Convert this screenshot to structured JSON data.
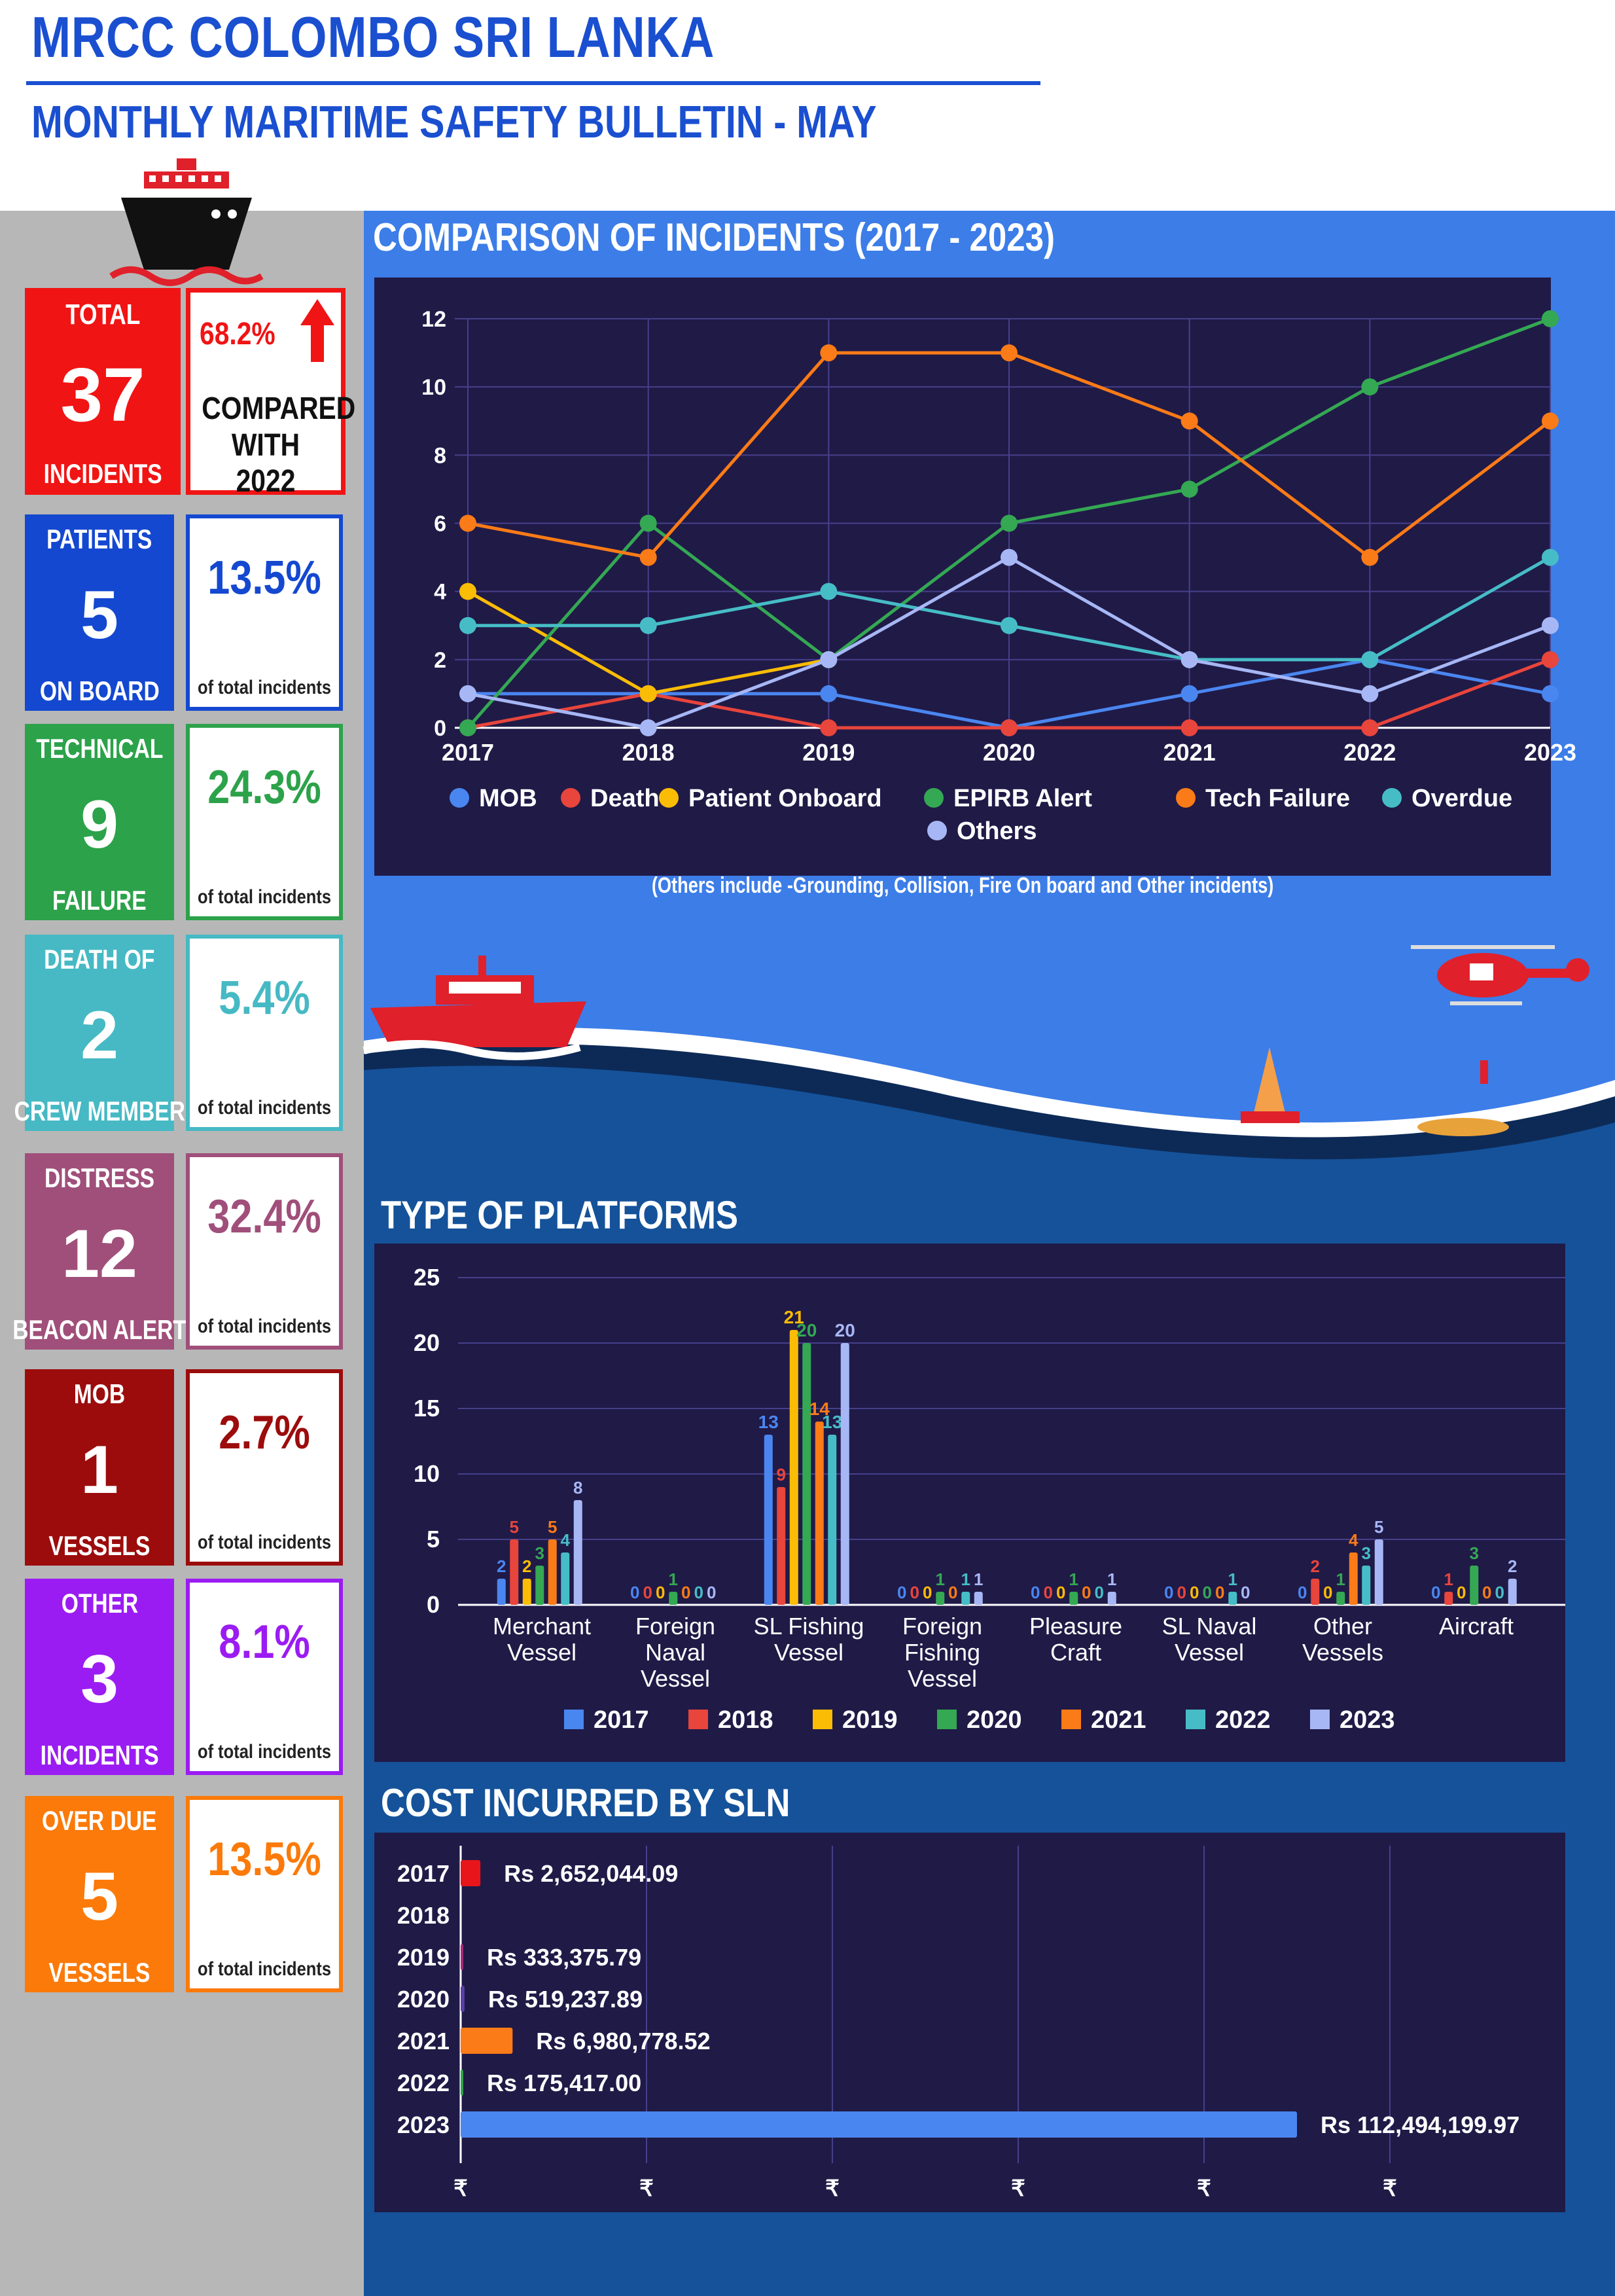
{
  "header": {
    "title": "MRCC COLOMBO SRI LANKA",
    "subtitle": "MONTHLY MARITIME SAFETY BULLETIN -    MAY"
  },
  "colors": {
    "title_blue": "#1a4fd0",
    "panel_blue": "#3c7de8",
    "panel_dark_blue": "#15529a",
    "chart_bg": "#201a47",
    "sidebar_grey": "#b7b7b7"
  },
  "summary": {
    "total": {
      "label_top": "TOTAL",
      "value": "37",
      "label_bottom": "INCIDENTS",
      "change": "68.2%",
      "compare_line1": "COMPARED",
      "compare_line2": "WITH 2022",
      "color": "#f01414"
    },
    "cards": [
      {
        "label_top": "PATIENTS",
        "value": "5",
        "label_bottom": "ON BOARD",
        "percent": "13.5%",
        "note": "of total incidents",
        "color": "#1448d0"
      },
      {
        "label_top": "TECHNICAL",
        "value": "9",
        "label_bottom": "FAILURE",
        "percent": "24.3%",
        "note": "of total incidents",
        "color": "#2ca24a"
      },
      {
        "label_top": "DEATH OF",
        "value": "2",
        "label_bottom": "CREW MEMBER",
        "percent": "5.4%",
        "note": "of total incidents",
        "color": "#46b9c4"
      },
      {
        "label_top": "DISTRESS",
        "value": "12",
        "label_bottom": "BEACON ALERT",
        "percent": "32.4%",
        "note": "of total incidents",
        "color": "#a04f7a"
      },
      {
        "label_top": "MOB",
        "value": "1",
        "label_bottom": "VESSELS",
        "percent": "2.7%",
        "note": "of total incidents",
        "color": "#9c0c0c"
      },
      {
        "label_top": "OTHER",
        "value": "3",
        "label_bottom": "INCIDENTS",
        "percent": "8.1%",
        "note": "of total incidents",
        "color": "#9b1cf2"
      },
      {
        "label_top": "OVER DUE",
        "value": "5",
        "label_bottom": "VESSELS",
        "percent": "13.5%",
        "note": "of total incidents",
        "color": "#fb7a0a"
      }
    ]
  },
  "chart_data": [
    {
      "type": "line",
      "title": "COMPARISON OF INCIDENTS (2017 - 2023)",
      "x": [
        "2017",
        "2018",
        "2019",
        "2020",
        "2021",
        "2022",
        "2023"
      ],
      "ylim": [
        0,
        12
      ],
      "yticks": [
        "0",
        "2",
        "4",
        "6",
        "8",
        "10",
        "12"
      ],
      "grid": true,
      "legend": "bottom",
      "series": [
        {
          "name": "MOB",
          "color": "#4a86f0",
          "values": [
            1,
            1,
            1,
            0,
            1,
            2,
            1
          ]
        },
        {
          "name": "Death",
          "color": "#e8453c",
          "values": [
            0,
            1,
            0,
            0,
            0,
            0,
            2
          ]
        },
        {
          "name": "Patient Onboard",
          "color": "#fbbc05",
          "values": [
            4,
            1,
            2,
            null,
            null,
            null,
            null
          ]
        },
        {
          "name": "EPIRB Alert",
          "color": "#34a853",
          "values": [
            0,
            6,
            2,
            6,
            7,
            10,
            12
          ]
        },
        {
          "name": "Tech Failure",
          "color": "#fa7b17",
          "values": [
            6,
            5,
            11,
            11,
            9,
            5,
            9
          ]
        },
        {
          "name": "Overdue",
          "color": "#46bdc6",
          "values": [
            3,
            3,
            4,
            3,
            2,
            2,
            5
          ]
        },
        {
          "name": "Others",
          "color": "#a7b7f5",
          "values": [
            1,
            0,
            2,
            5,
            2,
            1,
            3
          ]
        }
      ],
      "note": "(Others include -Grounding, Collision, Fire On board and Other incidents)"
    },
    {
      "type": "bar",
      "title": "TYPE OF PLATFORMS",
      "categories": [
        [
          "Merchant",
          "Vessel"
        ],
        [
          "Foreign",
          "Naval",
          "Vessel"
        ],
        [
          "SL Fishing",
          "Vessel"
        ],
        [
          "Foreign",
          "Fishing",
          "Vessel"
        ],
        [
          "Pleasure",
          "Craft"
        ],
        [
          "SL Naval",
          "Vessel"
        ],
        [
          "Other",
          "Vessels"
        ],
        [
          "Aircraft"
        ]
      ],
      "ylim": [
        0,
        25
      ],
      "yticks": [
        "0",
        "5",
        "10",
        "15",
        "20",
        "25"
      ],
      "grid": true,
      "legend": "bottom",
      "series": [
        {
          "name": "2017",
          "color": "#4a86f0",
          "values": [
            2,
            0,
            13,
            0,
            0,
            0,
            0,
            0
          ]
        },
        {
          "name": "2018",
          "color": "#e8453c",
          "values": [
            5,
            0,
            9,
            0,
            0,
            0,
            2,
            1
          ]
        },
        {
          "name": "2019",
          "color": "#fbbc05",
          "values": [
            2,
            0,
            21,
            0,
            0,
            0,
            0,
            0
          ]
        },
        {
          "name": "2020",
          "color": "#34a853",
          "values": [
            3,
            1,
            20,
            1,
            1,
            0,
            1,
            3
          ]
        },
        {
          "name": "2021",
          "color": "#fa7b17",
          "values": [
            5,
            0,
            14,
            0,
            0,
            0,
            4,
            0
          ]
        },
        {
          "name": "2022",
          "color": "#46bdc6",
          "values": [
            4,
            0,
            13,
            1,
            0,
            1,
            3,
            0
          ]
        },
        {
          "name": "2023",
          "color": "#a7b7f5",
          "values": [
            8,
            0,
            20,
            1,
            1,
            0,
            5,
            2
          ]
        }
      ]
    },
    {
      "type": "bar",
      "orientation": "horizontal",
      "title": "COST INCURRED BY SLN",
      "categories": [
        "2017",
        "2018",
        "2019",
        "2020",
        "2021",
        "2022",
        "2023"
      ],
      "values": [
        2652044.09,
        0,
        333375.79,
        519237.89,
        6980778.52,
        175417.0,
        112494199.97
      ],
      "labels": [
        "Rs 2,652,044.09",
        "",
        "Rs 333,375.79",
        "Rs 519,237.89",
        "Rs 6,980,778.52",
        "Rs 175,417.00",
        "Rs 112,494,199.97"
      ],
      "colors": [
        "#e8151b",
        "#e8151b",
        "#a32a7a",
        "#5a3fa8",
        "#fa7b17",
        "#2ca24a",
        "#4a86f0"
      ],
      "xticks": [
        "₹",
        "₹",
        "₹",
        "₹",
        "₹",
        "₹"
      ],
      "grid": true
    }
  ]
}
